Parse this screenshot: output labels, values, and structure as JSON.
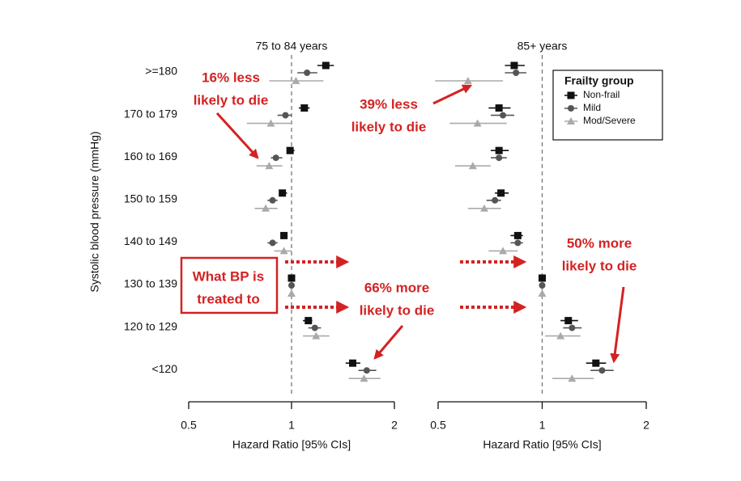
{
  "chart_data": {
    "type": "forest",
    "y_label": "Systolic blood pressure (mmHg)",
    "log_x": true,
    "reference_line": 1,
    "legend_title": "Frailty group",
    "legend_position": "upper right",
    "categories": [
      ">=180",
      "170 to 179",
      "160 to 169",
      "150 to 159",
      "140 to 149",
      "130 to 139",
      "120 to 129",
      "<120"
    ],
    "series": [
      {
        "name": "Non-frail",
        "color": "#111111",
        "marker": "square"
      },
      {
        "name": "Mild",
        "color": "#555555",
        "marker": "circle"
      },
      {
        "name": "Mod/Severe",
        "color": "#aaaaaa",
        "marker": "triangle"
      }
    ],
    "panels": [
      {
        "title": "75 to 84 years",
        "x_label": "Hazard Ratio [95% CIs]",
        "xlim": [
          0.5,
          2
        ],
        "xticks": [
          0.5,
          1,
          2
        ],
        "series": [
          {
            "values": [
              1.26,
              1.09,
              0.99,
              0.94,
              0.95,
              1,
              1.12,
              1.51
            ],
            "lower": [
              1.19,
              1.05,
              0.97,
              0.92,
              0.93,
              null,
              1.08,
              1.44
            ],
            "upper": [
              1.33,
              1.13,
              1.02,
              0.97,
              0.97,
              null,
              1.15,
              1.59
            ]
          },
          {
            "values": [
              1.11,
              0.96,
              0.9,
              0.88,
              0.88,
              1,
              1.17,
              1.66
            ],
            "lower": [
              1.04,
              0.91,
              0.87,
              0.85,
              0.85,
              null,
              1.12,
              1.57
            ],
            "upper": [
              1.19,
              1.0,
              0.94,
              0.91,
              0.91,
              null,
              1.22,
              1.77
            ]
          },
          {
            "values": [
              1.03,
              0.87,
              0.86,
              0.84,
              0.95,
              1,
              1.18,
              1.63
            ],
            "lower": [
              0.86,
              0.74,
              0.79,
              0.78,
              0.89,
              null,
              1.08,
              1.47
            ],
            "upper": [
              1.24,
              1.0,
              0.94,
              0.91,
              1.0,
              null,
              1.29,
              1.82
            ]
          }
        ]
      },
      {
        "title": "85+ years",
        "x_label": "Hazard Ratio [95% CIs]",
        "xlim": [
          0.5,
          2
        ],
        "xticks": [
          0.5,
          1,
          2
        ],
        "series": [
          {
            "values": [
              0.83,
              0.75,
              0.75,
              0.76,
              0.85,
              1,
              1.19,
              1.43
            ],
            "lower": [
              0.78,
              0.7,
              0.71,
              0.73,
              0.81,
              null,
              1.13,
              1.34
            ],
            "upper": [
              0.89,
              0.81,
              0.8,
              0.8,
              0.88,
              null,
              1.27,
              1.53
            ]
          },
          {
            "values": [
              0.84,
              0.77,
              0.75,
              0.73,
              0.85,
              1,
              1.22,
              1.49
            ],
            "lower": [
              0.78,
              0.71,
              0.71,
              0.69,
              0.81,
              null,
              1.15,
              1.38
            ],
            "upper": [
              0.9,
              0.83,
              0.79,
              0.76,
              0.88,
              null,
              1.3,
              1.61
            ]
          },
          {
            "values": [
              0.61,
              0.65,
              0.63,
              0.68,
              0.77,
              1,
              1.13,
              1.22
            ],
            "lower": [
              0.49,
              0.54,
              0.56,
              0.61,
              0.7,
              null,
              1.02,
              1.07
            ],
            "upper": [
              0.77,
              0.79,
              0.71,
              0.76,
              0.85,
              null,
              1.29,
              1.41
            ]
          }
        ]
      }
    ],
    "annotations": [
      {
        "lines": [
          "16% less",
          "likely to die"
        ]
      },
      {
        "lines": [
          "39% less",
          "likely to die"
        ]
      },
      {
        "lines": [
          "What BP is",
          "treated to"
        ]
      },
      {
        "lines": [
          "66% more",
          "likely to die"
        ]
      },
      {
        "lines": [
          "50% more",
          "likely to die"
        ]
      }
    ]
  }
}
